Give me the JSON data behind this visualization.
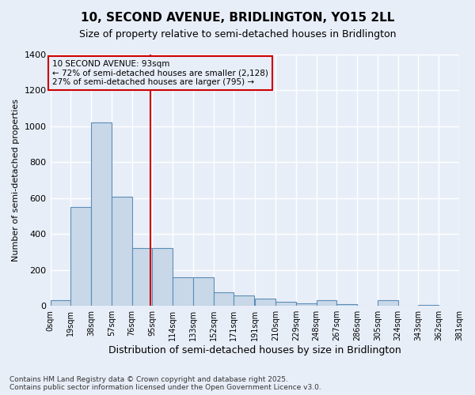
{
  "title1": "10, SECOND AVENUE, BRIDLINGTON, YO15 2LL",
  "title2": "Size of property relative to semi-detached houses in Bridlington",
  "xlabel": "Distribution of semi-detached houses by size in Bridlington",
  "ylabel": "Number of semi-detached properties",
  "annotation_title": "10 SECOND AVENUE: 93sqm",
  "annotation_line1": "← 72% of semi-detached houses are smaller (2,128)",
  "annotation_line2": "27% of semi-detached houses are larger (795) →",
  "property_size": 93,
  "bin_edges": [
    0,
    19,
    38,
    57,
    76,
    95,
    114,
    133,
    152,
    171,
    191,
    210,
    229,
    248,
    267,
    286,
    305,
    324,
    343,
    362,
    381
  ],
  "bin_labels": [
    "0sqm",
    "19sqm",
    "38sqm",
    "57sqm",
    "76sqm",
    "95sqm",
    "114sqm",
    "133sqm",
    "152sqm",
    "171sqm",
    "191sqm",
    "210sqm",
    "229sqm",
    "248sqm",
    "267sqm",
    "286sqm",
    "305sqm",
    "324sqm",
    "343sqm",
    "362sqm",
    "381sqm"
  ],
  "counts": [
    30,
    550,
    1020,
    610,
    320,
    320,
    160,
    160,
    75,
    60,
    40,
    25,
    15,
    30,
    8,
    0,
    30,
    0,
    5,
    0
  ],
  "bar_color": "#c8d8e8",
  "bar_edge_color": "#5b8db8",
  "vline_color": "#cc0000",
  "vline_x": 93,
  "box_color": "#cc0000",
  "background_color": "#e8eef8",
  "grid_color": "#ffffff",
  "ylim": [
    0,
    1400
  ],
  "yticks": [
    0,
    200,
    400,
    600,
    800,
    1000,
    1200,
    1400
  ],
  "footer": "Contains HM Land Registry data © Crown copyright and database right 2025.\nContains public sector information licensed under the Open Government Licence v3.0."
}
